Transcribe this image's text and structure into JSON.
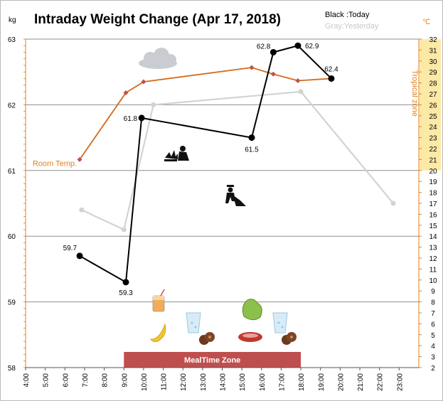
{
  "chart_data": {
    "type": "line",
    "title": "Intraday Weight Change (Apr 17, 2018)",
    "legend": {
      "today": "Black :Today",
      "yesterday": "Gray:Yesterday",
      "placement": "top-right"
    },
    "y_left": {
      "unit": "kg",
      "ylim": [
        58,
        63
      ],
      "ticks": [
        "58",
        "59",
        "60",
        "61",
        "62",
        "63"
      ]
    },
    "y_right": {
      "unit": "℃",
      "ylim": [
        2,
        32
      ],
      "ticks": [
        "2",
        "3",
        "4",
        "5",
        "6",
        "7",
        "8",
        "9",
        "10",
        "11",
        "12",
        "13",
        "14",
        "15",
        "16",
        "17",
        "18",
        "19",
        "20",
        "21",
        "22",
        "23",
        "24",
        "25",
        "26",
        "27",
        "28",
        "29",
        "30",
        "31",
        "32"
      ],
      "zone_label": "Tropical zone",
      "zone_range": [
        20,
        32
      ]
    },
    "x": {
      "range": [
        4,
        24
      ],
      "ticks": [
        "4:00",
        "5:00",
        "6:00",
        "7:00",
        "8:00",
        "9:00",
        "10:00",
        "11:00",
        "12:00",
        "13:00",
        "14:00",
        "15:00",
        "16:00",
        "17:00",
        "18:00",
        "19:00",
        "20:00",
        "21:00",
        "22:00",
        "23:00"
      ]
    },
    "grid": true,
    "series": [
      {
        "name": "Today",
        "color": "#000000",
        "points": [
          {
            "x": 6.75,
            "y": 59.7,
            "label": "59.7"
          },
          {
            "x": 9.1,
            "y": 59.3,
            "label": "59.3"
          },
          {
            "x": 9.9,
            "y": 61.8,
            "label": "61.8"
          },
          {
            "x": 15.5,
            "y": 61.5,
            "label": "61.5"
          },
          {
            "x": 16.6,
            "y": 62.8,
            "label": "62.8"
          },
          {
            "x": 17.85,
            "y": 62.9,
            "label": "62.9"
          },
          {
            "x": 19.55,
            "y": 62.4,
            "label": "62.4"
          }
        ]
      },
      {
        "name": "Yesterday",
        "color": "#d3d3d3",
        "points": [
          {
            "x": 6.85,
            "y": 60.4
          },
          {
            "x": 9.0,
            "y": 60.1
          },
          {
            "x": 10.5,
            "y": 62.0
          },
          {
            "x": 18.0,
            "y": 62.2
          },
          {
            "x": 22.7,
            "y": 60.5
          }
        ]
      },
      {
        "name": "Room Temp.",
        "color": "#d46a1a",
        "marker_color": "#c0504d",
        "axis": "right",
        "points": [
          {
            "x": 6.75,
            "y": 21
          },
          {
            "x": 9.1,
            "y": 27.1
          },
          {
            "x": 10.0,
            "y": 28.1
          },
          {
            "x": 15.5,
            "y": 29.4
          },
          {
            "x": 16.6,
            "y": 28.8
          },
          {
            "x": 17.85,
            "y": 28.2
          },
          {
            "x": 19.55,
            "y": 28.4
          }
        ]
      }
    ],
    "annotations": {
      "meal_zone_label": "MealTime Zone",
      "meal_zone_range": [
        9,
        18
      ]
    },
    "colors": {
      "orange": "#e0821c",
      "meal_zone": "#bf4f4f",
      "tropical_zone": "#fde9a6"
    }
  }
}
